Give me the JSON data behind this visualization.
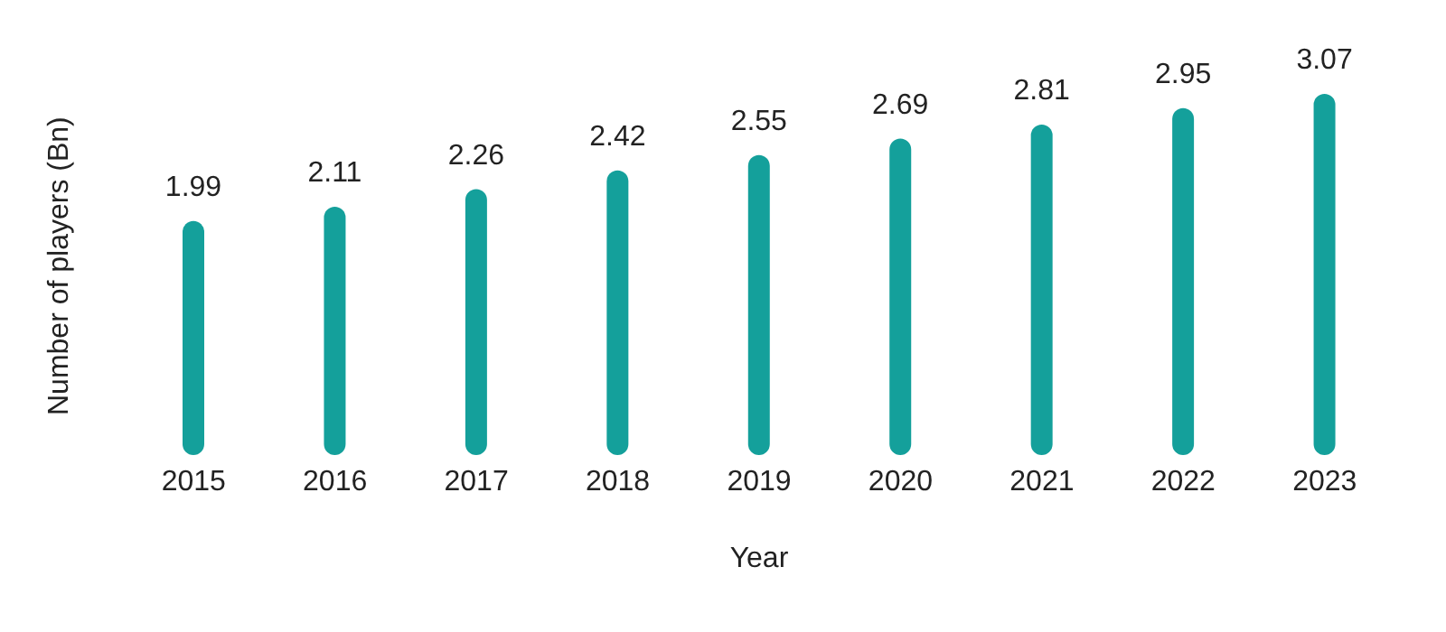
{
  "chart_data": {
    "type": "bar",
    "categories": [
      "2015",
      "2016",
      "2017",
      "2018",
      "2019",
      "2020",
      "2021",
      "2022",
      "2023"
    ],
    "values": [
      1.99,
      2.11,
      2.26,
      2.42,
      2.55,
      2.69,
      2.81,
      2.95,
      3.07
    ],
    "color": "#14a09b",
    "xlabel": "Year",
    "ylabel": "Number of players (Bn)",
    "data_labels": true,
    "tick_labels": "x"
  }
}
